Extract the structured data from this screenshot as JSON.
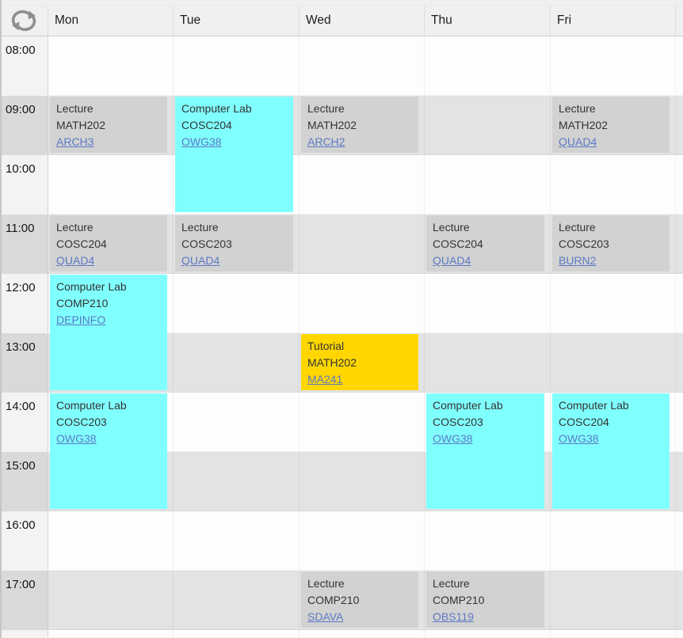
{
  "header": {
    "days": [
      "Mon",
      "Tue",
      "Wed",
      "Thu",
      "Fri"
    ]
  },
  "icons": {
    "refresh": "refresh-icon"
  },
  "times": [
    "08:00",
    "09:00",
    "10:00",
    "11:00",
    "12:00",
    "13:00",
    "14:00",
    "15:00",
    "16:00",
    "17:00"
  ],
  "events": [
    {
      "day": "Mon",
      "start": "09:00",
      "hours": 1,
      "category": "lecture",
      "activity": "Lecture",
      "module": "MATH202",
      "room": "ARCH3"
    },
    {
      "day": "Tue",
      "start": "09:00",
      "hours": 2,
      "category": "lab",
      "activity": "Computer Lab",
      "module": "COSC204",
      "room": "OWG38"
    },
    {
      "day": "Wed",
      "start": "09:00",
      "hours": 1,
      "category": "lecture",
      "activity": "Lecture",
      "module": "MATH202",
      "room": "ARCH2"
    },
    {
      "day": "Fri",
      "start": "09:00",
      "hours": 1,
      "category": "lecture",
      "activity": "Lecture",
      "module": "MATH202",
      "room": "QUAD4"
    },
    {
      "day": "Mon",
      "start": "11:00",
      "hours": 1,
      "category": "lecture",
      "activity": "Lecture",
      "module": "COSC204",
      "room": "QUAD4"
    },
    {
      "day": "Tue",
      "start": "11:00",
      "hours": 1,
      "category": "lecture",
      "activity": "Lecture",
      "module": "COSC203",
      "room": "QUAD4"
    },
    {
      "day": "Thu",
      "start": "11:00",
      "hours": 1,
      "category": "lecture",
      "activity": "Lecture",
      "module": "COSC204",
      "room": "QUAD4"
    },
    {
      "day": "Fri",
      "start": "11:00",
      "hours": 1,
      "category": "lecture",
      "activity": "Lecture",
      "module": "COSC203",
      "room": "BURN2"
    },
    {
      "day": "Mon",
      "start": "12:00",
      "hours": 2,
      "category": "lab",
      "activity": "Computer Lab",
      "module": "COMP210",
      "room": "DEPINFO"
    },
    {
      "day": "Wed",
      "start": "13:00",
      "hours": 1,
      "category": "tutorial",
      "activity": "Tutorial",
      "module": "MATH202",
      "room": "MA241"
    },
    {
      "day": "Mon",
      "start": "14:00",
      "hours": 2,
      "category": "lab",
      "activity": "Computer Lab",
      "module": "COSC203",
      "room": "OWG38"
    },
    {
      "day": "Thu",
      "start": "14:00",
      "hours": 2,
      "category": "lab",
      "activity": "Computer Lab",
      "module": "COSC203",
      "room": "OWG38"
    },
    {
      "day": "Fri",
      "start": "14:00",
      "hours": 2,
      "category": "lab",
      "activity": "Computer Lab",
      "module": "COSC204",
      "room": "OWG38"
    },
    {
      "day": "Wed",
      "start": "17:00",
      "hours": 1,
      "category": "lecture",
      "activity": "Lecture",
      "module": "COMP210",
      "room": "SDAVA"
    },
    {
      "day": "Thu",
      "start": "17:00",
      "hours": 1,
      "category": "lecture",
      "activity": "Lecture",
      "module": "COMP210",
      "room": "OBS119"
    }
  ],
  "colors": {
    "lecture": "#d2d2d2",
    "lab": "#80ffff",
    "tutorial": "#ffd600",
    "link": "#5b79c4",
    "header_bg": "#f0f0f0",
    "row_shaded": "#e3e3e3",
    "icon": "#8e8e8e"
  }
}
